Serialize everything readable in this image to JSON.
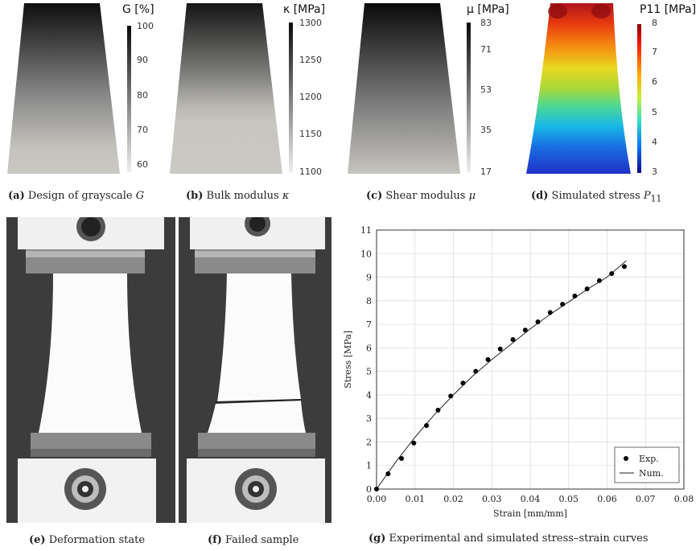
{
  "panels": {
    "a": {
      "tag": "(a)",
      "caption": "Design of grayscale",
      "symbol": "G",
      "cb_title": "G [%]",
      "cb_ticks": [
        "100",
        "90",
        "80",
        "70",
        "60"
      ]
    },
    "b": {
      "tag": "(b)",
      "caption": "Bulk modulus",
      "symbol": "κ",
      "cb_title": "κ [MPa]",
      "cb_ticks": [
        "1300",
        "1250",
        "1200",
        "1150",
        "1100"
      ]
    },
    "c": {
      "tag": "(c)",
      "caption": "Shear modulus",
      "symbol": "μ",
      "cb_title": "μ [MPa]",
      "cb_ticks": [
        "83",
        "71",
        "53",
        "35",
        "17"
      ]
    },
    "d": {
      "tag": "(d)",
      "caption": "Simulated stress",
      "symbol": "P",
      "symbol_sub": "11",
      "cb_title": "P11 [MPa]",
      "cb_ticks": [
        "8",
        "7",
        "6",
        "5",
        "4",
        "3"
      ]
    },
    "e": {
      "tag": "(e)",
      "caption": "Deformation state"
    },
    "f": {
      "tag": "(f)",
      "caption": "Failed sample"
    },
    "g": {
      "tag": "(g)",
      "caption": "Experimental and simulated stress–strain curves"
    }
  },
  "colors": {
    "gray_dark": "#111111",
    "gray_light": "#c8c6c0",
    "jet_hot": "#d7191c",
    "jet_cold": "#1a2fd0"
  },
  "chart_data": {
    "type": "scatter",
    "xlabel": "Strain [mm/mm]",
    "ylabel": "Stress [MPa]",
    "xlim": [
      0,
      0.08
    ],
    "ylim": [
      0,
      11
    ],
    "x_ticks": [
      "0.00",
      "0.01",
      "0.02",
      "0.03",
      "0.04",
      "0.05",
      "0.06",
      "0.07",
      "0.08"
    ],
    "y_ticks": [
      "0",
      "1",
      "2",
      "3",
      "4",
      "5",
      "6",
      "7",
      "8",
      "9",
      "10",
      "11"
    ],
    "grid": true,
    "legend_position": "bottom-right",
    "series": [
      {
        "name": "Exp.",
        "style": "markers",
        "x": [
          0.0,
          0.003,
          0.0065,
          0.0097,
          0.013,
          0.016,
          0.0193,
          0.0225,
          0.0258,
          0.029,
          0.0322,
          0.0355,
          0.0387,
          0.042,
          0.0452,
          0.0484,
          0.0516,
          0.0548,
          0.058,
          0.0612,
          0.0645
        ],
        "y": [
          0.0,
          0.65,
          1.3,
          1.95,
          2.7,
          3.35,
          3.95,
          4.5,
          5.0,
          5.5,
          5.95,
          6.35,
          6.75,
          7.1,
          7.5,
          7.85,
          8.2,
          8.5,
          8.85,
          9.15,
          9.45
        ]
      },
      {
        "name": "Num.",
        "style": "line",
        "x": [
          0.0,
          0.005,
          0.01,
          0.015,
          0.02,
          0.025,
          0.03,
          0.035,
          0.04,
          0.045,
          0.05,
          0.055,
          0.06,
          0.065
        ],
        "y": [
          0.0,
          1.15,
          2.2,
          3.15,
          4.0,
          4.8,
          5.5,
          6.15,
          6.8,
          7.4,
          7.95,
          8.5,
          9.0,
          9.7
        ]
      }
    ]
  }
}
